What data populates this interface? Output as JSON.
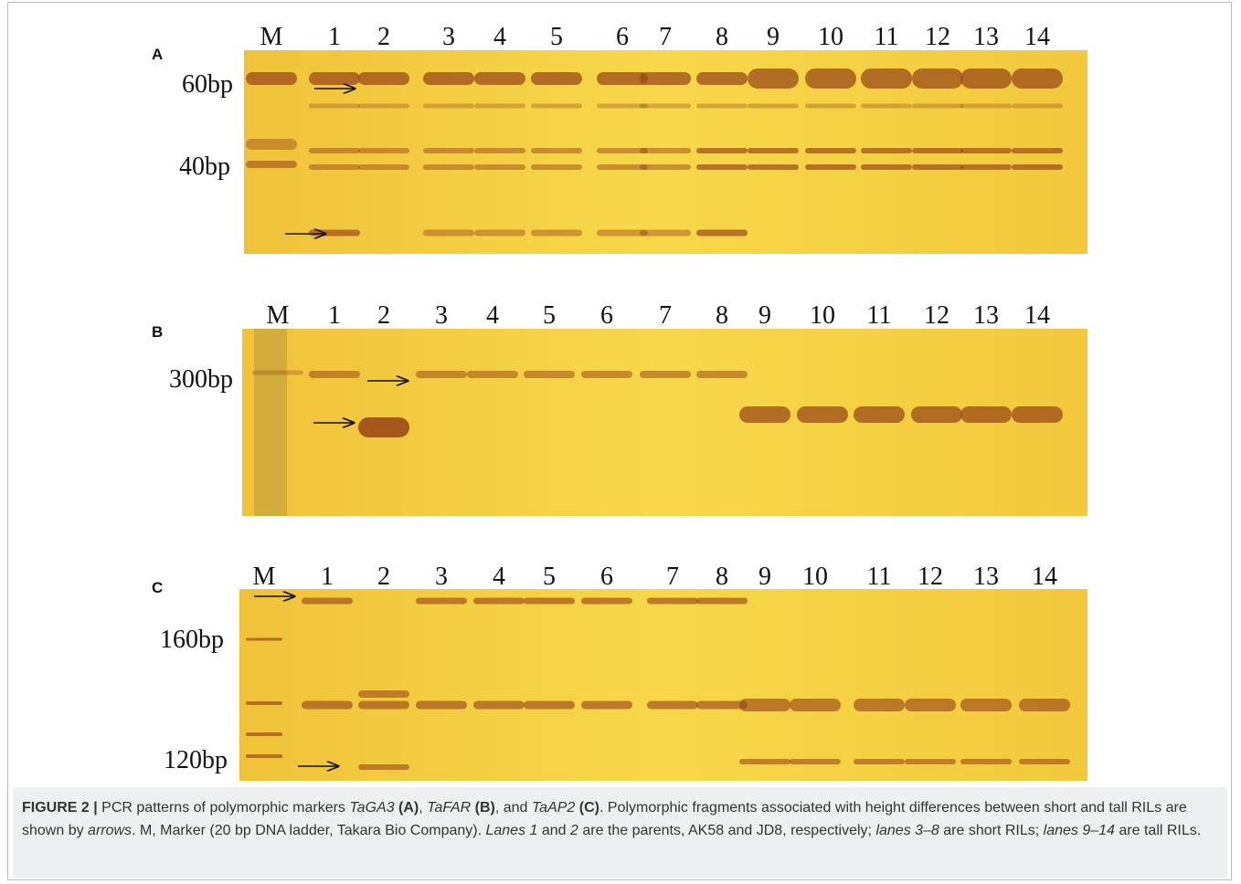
{
  "figure": {
    "panels": [
      {
        "letter": "A",
        "lanes": [
          "M",
          "1",
          "2",
          "3",
          "4",
          "5",
          "6",
          "7",
          "8",
          "9",
          "10",
          "11",
          "12",
          "13",
          "14"
        ],
        "sizes": [
          "60bp",
          "40bp"
        ]
      },
      {
        "letter": "B",
        "lanes": [
          "M",
          "1",
          "2",
          "3",
          "4",
          "5",
          "6",
          "7",
          "8",
          "9",
          "10",
          "11",
          "12",
          "13",
          "14"
        ],
        "sizes": [
          "300bp"
        ]
      },
      {
        "letter": "C",
        "lanes": [
          "M",
          "1",
          "2",
          "3",
          "4",
          "5",
          "6",
          "7",
          "8",
          "9",
          "10",
          "11",
          "12",
          "13",
          "14"
        ],
        "sizes": [
          "160bp",
          "120bp"
        ]
      }
    ],
    "caption": [
      "FIGURE 2 |",
      " PCR patterns of polymorphic markers ",
      "TaGA3",
      "(A)",
      ", ",
      "TaFAR",
      "(B)",
      ", and ",
      "TaAP2",
      "(C)",
      ". Polymorphic fragments associated with height differences between short and tall RILs are shown by ",
      "arrows",
      ". M, Marker (20 bp DNA ladder, Takara Bio Company). ",
      "Lanes 1",
      " and ",
      "2",
      " are the parents, AK58 and JD8, respectively; ",
      "lanes 3–8",
      " are short RILs; ",
      "lanes 9–14",
      " are tall RILs."
    ]
  }
}
